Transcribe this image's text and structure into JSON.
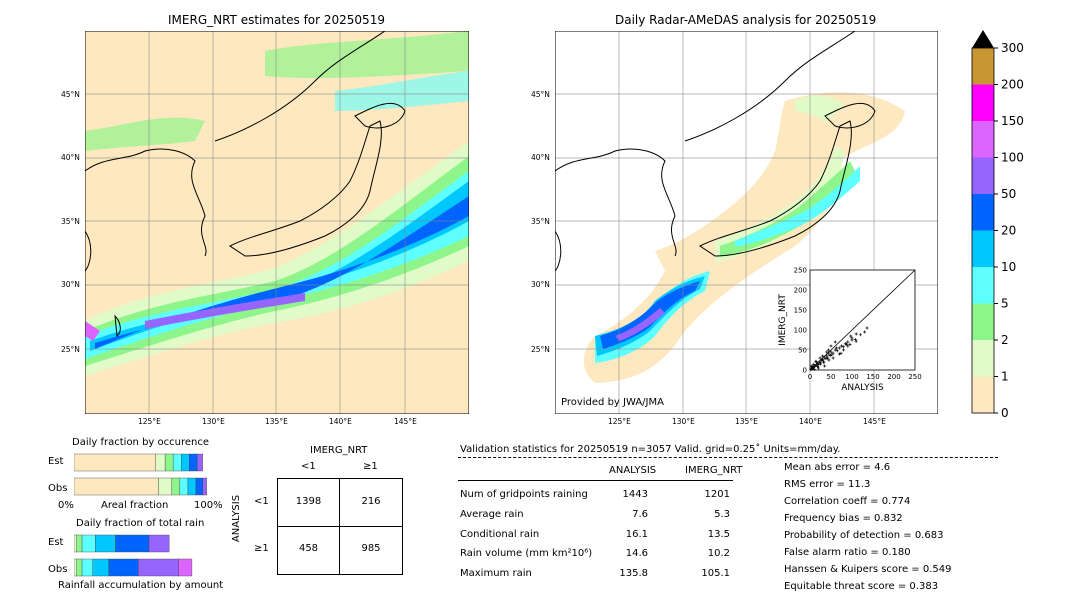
{
  "left_map": {
    "title": "IMERG_NRT estimates for 20250519",
    "lat_labels": [
      "45°N",
      "40°N",
      "35°N",
      "30°N",
      "25°N"
    ],
    "lon_labels": [
      "125°E",
      "130°E",
      "135°E",
      "140°E",
      "145°E"
    ]
  },
  "right_map": {
    "title": "Daily Radar-AMeDAS analysis for 20250519",
    "lat_labels": [
      "45°N",
      "40°N",
      "35°N",
      "30°N",
      "25°N"
    ],
    "lon_labels": [
      "125°E",
      "130°E",
      "135°E",
      "140°E",
      "145°E"
    ],
    "credit": "Provided by JWA/JMA"
  },
  "colorbar": {
    "ticks": [
      "300",
      "200",
      "150",
      "100",
      "50",
      "20",
      "10",
      "5",
      "2",
      "1",
      "0"
    ],
    "colors": [
      "#fde8c0",
      "#e1fbc8",
      "#8ef58a",
      "#5effff",
      "#00c8ff",
      "#0064ff",
      "#9664ff",
      "#dc64ff",
      "#ff00ff",
      "#c89632"
    ]
  },
  "scatter": {
    "ylabel": "IMERG_NRT",
    "xlabel": "ANALYSIS",
    "ticks": [
      "0",
      "50",
      "100",
      "150",
      "200",
      "250"
    ]
  },
  "occurrence": {
    "title": "Daily fraction by occurence",
    "row_est": "Est",
    "row_obs": "Obs",
    "axis_left": "0%",
    "axis_mid": "Areal fraction",
    "axis_right": "100%"
  },
  "total_rain": {
    "title": "Daily fraction of total rain",
    "row_est": "Est",
    "row_obs": "Obs",
    "axis_label": "Rainfall accumulation by amount"
  },
  "contingency": {
    "col_title": "IMERG_NRT",
    "col_lt": "<1",
    "col_ge": "≥1",
    "row_title": "ANALYSIS",
    "row_lt": "<1",
    "row_ge": "≥1",
    "cells": [
      "1398",
      "216",
      "458",
      "985"
    ]
  },
  "validation": {
    "header": "Validation statistics for 20250519  n=3057 Valid. grid=0.25˚ Units=mm/day.",
    "col_analysis": "ANALYSIS",
    "col_imerg": "IMERG_NRT",
    "rows": [
      {
        "label": "Num of gridpoints raining",
        "analysis": "1443",
        "imerg": "1201"
      },
      {
        "label": "Average rain",
        "analysis": "7.6",
        "imerg": "5.3"
      },
      {
        "label": "Conditional rain",
        "analysis": "16.1",
        "imerg": "13.5"
      },
      {
        "label": "Rain volume (mm km²10⁶)",
        "analysis": "14.6",
        "imerg": "10.2"
      },
      {
        "label": "Maximum rain",
        "analysis": "135.8",
        "imerg": "105.1"
      }
    ],
    "scores": [
      "Mean abs error =    4.6",
      "RMS error =   11.3",
      "Correlation coeff =  0.774",
      "Frequency bias =  0.832",
      "Probability of detection =  0.683",
      "False alarm ratio =  0.180",
      "Hanssen & Kuipers score =  0.549",
      "Equitable threat score =  0.383"
    ]
  },
  "chart_data": [
    {
      "type": "scatter",
      "title": "",
      "xlabel": "ANALYSIS",
      "ylabel": "IMERG_NRT",
      "xlim": [
        0,
        250
      ],
      "ylim": [
        0,
        250
      ],
      "grid": false,
      "note_series": "cloud of points concentrated below 150 along diagonal",
      "series": [
        {
          "x": [
            2,
            5,
            8,
            10,
            12,
            15,
            18,
            20,
            22,
            25,
            28,
            30,
            32,
            35,
            38,
            40,
            42,
            45,
            48,
            50,
            55,
            60,
            65,
            70,
            75,
            80,
            85,
            90,
            95,
            100,
            110,
            120,
            130,
            135.8,
            5,
            10,
            15,
            20,
            25,
            30,
            35,
            40,
            45,
            50,
            55,
            60,
            70,
            80,
            90,
            100,
            110,
            3,
            6,
            9,
            14,
            18,
            24,
            33,
            44,
            52,
            63,
            74,
            86,
            97,
            108
          ],
          "y": [
            1,
            4,
            6,
            8,
            10,
            12,
            15,
            14,
            20,
            18,
            24,
            26,
            22,
            30,
            28,
            35,
            30,
            40,
            36,
            45,
            42,
            50,
            48,
            55,
            60,
            58,
            66,
            70,
            64,
            80,
            72,
            88,
            95,
            105,
            10,
            2,
            20,
            5,
            15,
            35,
            10,
            45,
            25,
            60,
            30,
            70,
            40,
            50,
            60,
            75,
            90,
            8,
            3,
            14,
            22,
            9,
            30,
            18,
            50,
            38,
            55,
            42,
            64,
            85,
            76
          ]
        }
      ]
    },
    {
      "type": "bar",
      "title": "Daily fraction by occurence",
      "categories": [
        "Est",
        "Obs"
      ],
      "series": [
        {
          "values": [
            0.61,
            0.63
          ]
        },
        {
          "values": [
            0.07,
            0.1
          ]
        },
        {
          "values": [
            0.06,
            0.06
          ]
        },
        {
          "values": [
            0.06,
            0.06
          ]
        },
        {
          "values": [
            0.06,
            0.06
          ]
        },
        {
          "values": [
            0.06,
            0.05
          ]
        },
        {
          "values": [
            0.04,
            0.03
          ]
        }
      ]
    },
    {
      "type": "bar",
      "title": "Daily fraction of total rain",
      "categories": [
        "Est",
        "Obs"
      ],
      "series": [
        {
          "values": [
            0.02,
            0.02
          ]
        },
        {
          "values": [
            0.04,
            0.04
          ]
        },
        {
          "values": [
            0.1,
            0.08
          ]
        },
        {
          "values": [
            0.15,
            0.12
          ]
        },
        {
          "values": [
            0.25,
            0.22
          ]
        },
        {
          "values": [
            0.15,
            0.3
          ]
        },
        {
          "values": [
            0.0,
            0.1
          ]
        }
      ]
    }
  ]
}
